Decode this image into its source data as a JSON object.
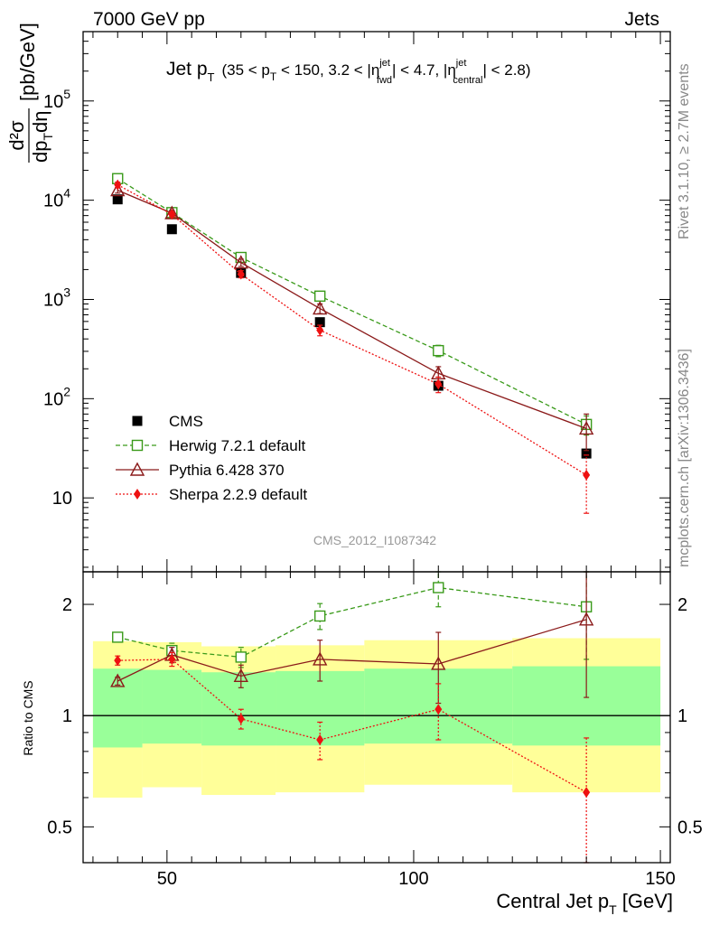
{
  "header": {
    "left": "7000 GeV pp",
    "right": "Jets"
  },
  "side_labels": {
    "rivet": "Rivet 3.1.10, ≥ 2.7M events",
    "mcplots": "mcplots.cern.ch [arXiv:1306.3436]"
  },
  "plot_title": {
    "main": "Jet p",
    "main_sub": "T",
    "cut_text": "(35 < p",
    "cut_sub1": "T",
    "cut_text2": " < 150, 3.2 < |η",
    "eta_fwd_sup": "jet",
    "eta_fwd_sub": "fwd",
    "cut_text3": "| < 4.7, |η",
    "eta_cen_sup": "jet",
    "eta_cen_sub": "central",
    "cut_text4": "| < 2.8)"
  },
  "analysis_id": "CMS_2012_I1087342",
  "colors": {
    "cms": "#000000",
    "herwig": "#3a9a1a",
    "pythia": "#8b1a1a",
    "sherpa": "#ee1111",
    "band_yellow": "#ffff99",
    "band_green": "#99ff99"
  },
  "chart_data": [
    {
      "type": "line",
      "title": "Jet pT (35 < pT < 150, 3.2 < |eta_fwd| < 4.7, |eta_central| < 2.8)",
      "ylabel": "d²σ/dp_T dη [pb/GeV]",
      "ylabel_parts": {
        "num": "d²σ",
        "den": "dp",
        "den_sub": "T",
        "den_end": "dη",
        "unit": "[pb/GeV]"
      },
      "yscale": "log",
      "xlim": [
        33,
        152
      ],
      "ylim": [
        1.8,
        500000
      ],
      "yticks": [
        {
          "value": 10,
          "base": "10",
          "exp": ""
        },
        {
          "value": 100,
          "base": "10",
          "exp": "2"
        },
        {
          "value": 1000,
          "base": "10",
          "exp": "3"
        },
        {
          "value": 10000,
          "base": "10",
          "exp": "4"
        },
        {
          "value": 100000,
          "base": "10",
          "exp": "5"
        }
      ],
      "legend_position": "lower-left",
      "series": [
        {
          "name": "CMS",
          "key": "cms",
          "marker": "square-filled",
          "line": "none",
          "x": [
            40,
            51,
            65,
            81,
            105,
            135
          ],
          "y": [
            10200,
            5100,
            1850,
            590,
            135,
            28
          ],
          "err": [
            0,
            0,
            0,
            0,
            0,
            0
          ]
        },
        {
          "name": "Herwig 7.2.1 default",
          "key": "herwig",
          "marker": "square-open",
          "line": "dashed",
          "x": [
            40,
            51,
            65,
            81,
            105,
            135
          ],
          "y": [
            16500,
            7500,
            2650,
            1080,
            305,
            55
          ],
          "err": [
            900,
            500,
            200,
            90,
            40,
            12
          ]
        },
        {
          "name": "Pythia 6.428 370",
          "key": "pythia",
          "marker": "triangle-open",
          "line": "solid",
          "x": [
            40,
            51,
            65,
            81,
            105,
            135
          ],
          "y": [
            12600,
            7400,
            2350,
            810,
            180,
            50
          ],
          "err": [
            800,
            500,
            200,
            90,
            30,
            20
          ]
        },
        {
          "name": "Sherpa 2.2.9 default",
          "key": "sherpa",
          "marker": "diamond-filled",
          "line": "dotted",
          "x": [
            40,
            51,
            65,
            81,
            105,
            135
          ],
          "y": [
            14300,
            7200,
            1800,
            490,
            140,
            17
          ],
          "err": [
            900,
            400,
            150,
            60,
            25,
            10
          ]
        }
      ]
    },
    {
      "type": "line",
      "title": "Ratio to CMS",
      "xlabel": "Central Jet p_T [GeV]",
      "xlabel_parts": {
        "main": "Central Jet p",
        "sub": "T",
        "unit": " [GeV]"
      },
      "ylabel": "Ratio to CMS",
      "yscale": "log",
      "xlim": [
        33,
        152
      ],
      "ylim": [
        0.4,
        2.45
      ],
      "xticks": [
        50,
        100,
        150
      ],
      "yticks": [
        0.5,
        1,
        2
      ],
      "bands": {
        "edges": [
          [
            35,
            45
          ],
          [
            45,
            57
          ],
          [
            57,
            72
          ],
          [
            72,
            90
          ],
          [
            90,
            120
          ],
          [
            120,
            150
          ]
        ],
        "yellow_low": [
          0.6,
          0.64,
          0.61,
          0.62,
          0.65,
          0.62
        ],
        "yellow_high": [
          1.59,
          1.58,
          1.54,
          1.55,
          1.6,
          1.62
        ],
        "green_low": [
          0.82,
          0.84,
          0.83,
          0.83,
          0.84,
          0.83
        ],
        "green_high": [
          1.34,
          1.33,
          1.31,
          1.32,
          1.34,
          1.36
        ]
      },
      "series": [
        {
          "name": "Herwig 7.2.1 default",
          "key": "herwig",
          "marker": "square-open",
          "line": "dashed",
          "x": [
            40,
            51,
            65,
            81,
            105,
            135
          ],
          "y": [
            1.63,
            1.5,
            1.44,
            1.86,
            2.22,
            1.97
          ],
          "err": [
            0.03,
            0.07,
            0.09,
            0.15,
            0.25,
            0.55
          ]
        },
        {
          "name": "Pythia 6.428 370",
          "key": "pythia",
          "marker": "triangle-open",
          "line": "solid",
          "x": [
            40,
            51,
            65,
            81,
            105,
            135
          ],
          "y": [
            1.24,
            1.46,
            1.28,
            1.42,
            1.38,
            1.82
          ],
          "err": [
            0.03,
            0.07,
            0.09,
            0.18,
            0.3,
            0.7
          ]
        },
        {
          "name": "Sherpa 2.2.9 default",
          "key": "sherpa",
          "marker": "diamond-filled",
          "line": "dotted",
          "x": [
            40,
            51,
            65,
            81,
            105,
            135
          ],
          "y": [
            1.41,
            1.42,
            0.98,
            0.86,
            1.04,
            0.62
          ],
          "err": [
            0.04,
            0.06,
            0.06,
            0.1,
            0.18,
            0.25
          ]
        }
      ]
    }
  ]
}
